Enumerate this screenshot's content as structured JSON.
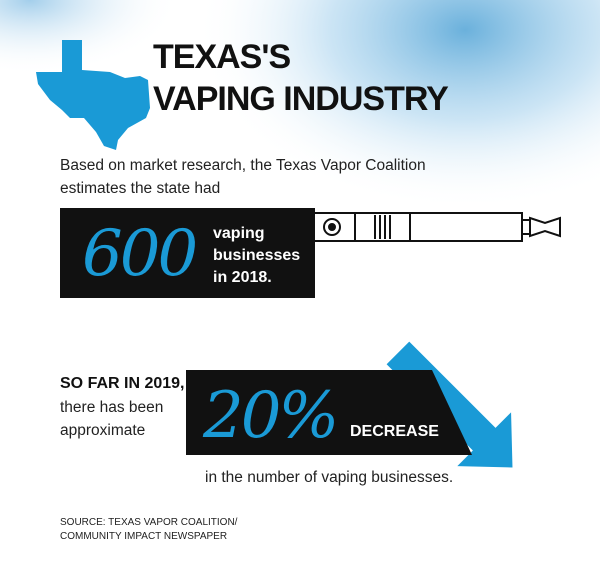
{
  "header": {
    "title": [
      "TEXAS'S",
      "VAPING INDUSTRY"
    ]
  },
  "intro": [
    "Based on market research, the Texas Vapor Coalition",
    "estimates the state had"
  ],
  "stat1": {
    "number": "600",
    "text": [
      "vaping",
      "businesses",
      "in 2018."
    ]
  },
  "stat2": {
    "lead": [
      "SO FAR IN 2019,",
      "there has been",
      "approximate"
    ],
    "number": "20%",
    "label": "DECREASE",
    "tail": "in the number of vaping businesses."
  },
  "source": [
    "SOURCE: TEXAS VAPOR COALITION/",
    "COMMUNITY IMPACT NEWSPAPER"
  ]
}
